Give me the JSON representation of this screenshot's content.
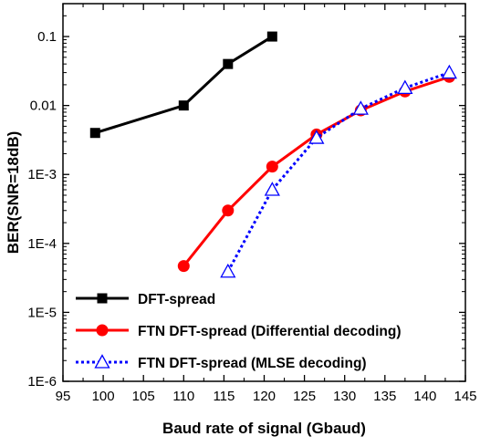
{
  "chart_data": {
    "type": "line",
    "xlabel": "Baud rate of signal (Gbaud)",
    "ylabel": "BER(SNR=18dB)",
    "xlim": [
      95,
      145
    ],
    "ylim": [
      1e-06,
      0.3
    ],
    "y_scale": "log",
    "x_ticks": [
      95,
      100,
      105,
      110,
      115,
      120,
      125,
      130,
      135,
      140,
      145
    ],
    "x_tick_labels": [
      "95",
      "100",
      "105",
      "110",
      "115",
      "120",
      "125",
      "130",
      "135",
      "140",
      "145"
    ],
    "y_ticks": [
      1e-06,
      1e-05,
      0.0001,
      0.001,
      0.01,
      0.1
    ],
    "y_tick_labels": [
      "1E-6",
      "1E-5",
      "1E-4",
      "1E-3",
      "0.01",
      "0.1"
    ],
    "grid": false,
    "legend_position": "bottom-left",
    "series": [
      {
        "name": "DFT-spread",
        "color": "#000000",
        "line_style": "solid",
        "marker": "square",
        "x": [
          99,
          110,
          115.5,
          121
        ],
        "y": [
          0.004,
          0.01,
          0.04,
          0.1
        ]
      },
      {
        "name": "FTN DFT-spread (Differential decoding)",
        "color": "#ff0000",
        "line_style": "solid",
        "marker": "circle",
        "x": [
          110,
          115.5,
          121,
          126.5,
          132,
          137.5,
          143
        ],
        "y": [
          4.7e-05,
          0.0003,
          0.0013,
          0.0038,
          0.0085,
          0.016,
          0.026
        ]
      },
      {
        "name": "FTN DFT-spread (MLSE decoding)",
        "color": "#0000ff",
        "line_style": "dotted",
        "marker": "triangle-open",
        "x": [
          115.5,
          121,
          126.5,
          132,
          137.5,
          143
        ],
        "y": [
          3.9e-05,
          0.0006,
          0.0034,
          0.009,
          0.018,
          0.03
        ]
      }
    ]
  }
}
